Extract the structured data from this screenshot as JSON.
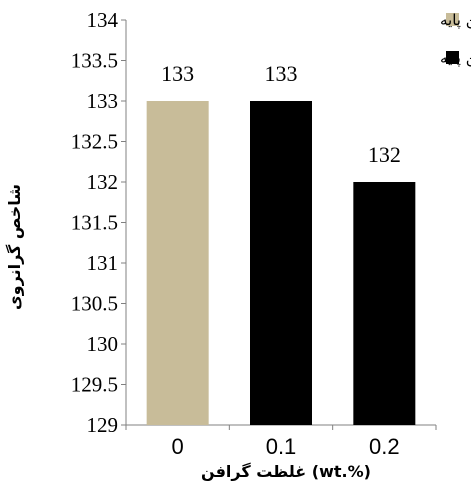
{
  "chart_data": {
    "type": "bar",
    "title": "",
    "xlabel": "غلظت گرافن (wt.%)",
    "ylabel": "شاخص گرانروی",
    "categories": [
      "0",
      "0.1",
      "0.2"
    ],
    "values": [
      133,
      133,
      132
    ],
    "data_labels": [
      "133",
      "133",
      "132"
    ],
    "bar_series_index": [
      0,
      1,
      1
    ],
    "series": [
      {
        "name": "روغن پایه",
        "color": "#c8bc99"
      },
      {
        "name": "گرافن+روغن پایه",
        "color": "#000000"
      }
    ],
    "ylim": [
      129,
      134
    ],
    "yticks": [
      129,
      129.5,
      130,
      130.5,
      131,
      131.5,
      132,
      132.5,
      133,
      133.5,
      134
    ],
    "ytick_labels": [
      "129",
      "129.5",
      "130",
      "130.5",
      "131",
      "131.5",
      "132",
      "132.5",
      "133",
      "133.5",
      "134"
    ],
    "grid": false,
    "legend_position": "top-right"
  }
}
